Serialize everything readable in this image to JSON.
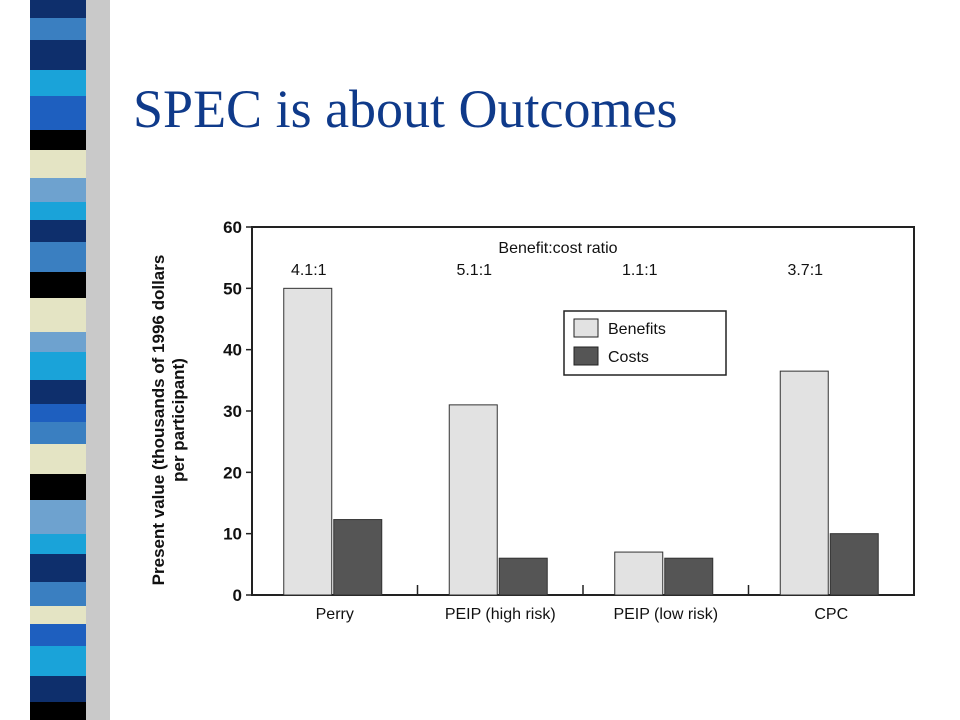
{
  "slide": {
    "title": "SPEC is about Outcomes"
  },
  "sidebar_palette": [
    "#0e2f6c",
    "#3a7fc1",
    "#1aa3d9",
    "#6ea2cf",
    "#e4e4c4",
    "#000000",
    "#1e5fbf"
  ],
  "chart_data": {
    "type": "bar",
    "title": "",
    "ratio_heading": "Benefit:cost ratio",
    "categories": [
      "Perry",
      "PEIP (high risk)",
      "PEIP (low risk)",
      "CPC"
    ],
    "ratios": [
      "4.1:1",
      "5.1:1",
      "1.1:1",
      "3.7:1"
    ],
    "series": [
      {
        "name": "Benefits",
        "values": [
          50,
          31,
          7,
          36.5
        ],
        "color": "#e2e2e2"
      },
      {
        "name": "Costs",
        "values": [
          12.3,
          6,
          6,
          10
        ],
        "color": "#555555"
      }
    ],
    "ylabel_line1": "Present value (thousands of 1996 dollars",
    "ylabel_line2": "per participant)",
    "xlabel": "",
    "ylim": [
      0,
      60
    ],
    "yticks": [
      0,
      10,
      20,
      30,
      40,
      50,
      60
    ],
    "grid": false,
    "legend_position": "top-right"
  }
}
